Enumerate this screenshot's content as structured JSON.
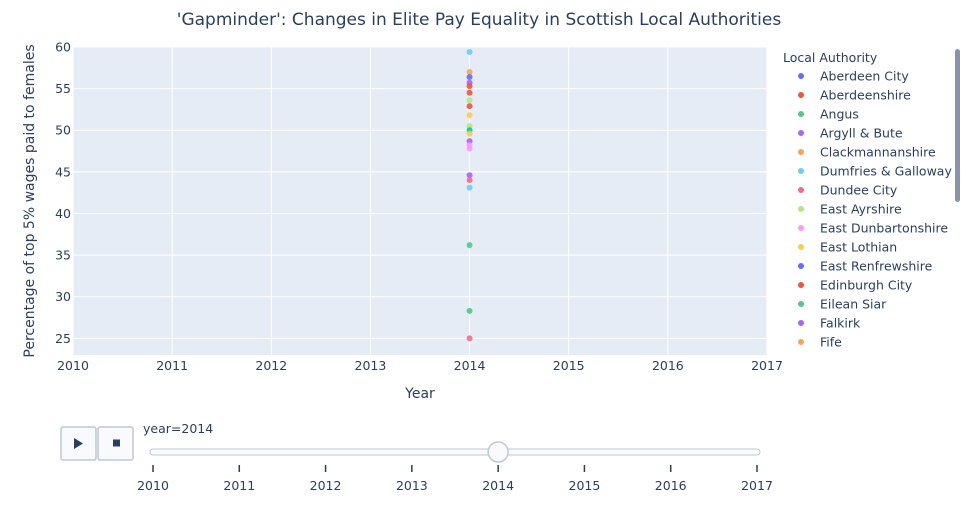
{
  "chart_data": {
    "type": "scatter",
    "title": "'Gapminder': Changes in Elite Pay Equality in Scottish Local Authorities",
    "xlabel": "Year",
    "ylabel": "Percentage of top 5% wages paid to females",
    "xlim": [
      2010,
      2017
    ],
    "ylim": [
      23,
      60
    ],
    "x_ticks": [
      2010,
      2011,
      2012,
      2013,
      2014,
      2015,
      2016,
      2017
    ],
    "y_ticks": [
      25,
      30,
      35,
      40,
      45,
      50,
      55,
      60
    ],
    "grid": true,
    "points": [
      {
        "x": 2014,
        "y": 59.4,
        "color": "#6fcbf8"
      },
      {
        "x": 2014,
        "y": 57.0,
        "color": "#f7a45b"
      },
      {
        "x": 2014,
        "y": 56.4,
        "color": "#636efa"
      },
      {
        "x": 2014,
        "y": 55.7,
        "color": "#ab63fa"
      },
      {
        "x": 2014,
        "y": 55.3,
        "color": "#ef553b"
      },
      {
        "x": 2014,
        "y": 54.5,
        "color": "#ef553b"
      },
      {
        "x": 2014,
        "y": 53.6,
        "color": "#b6e880"
      },
      {
        "x": 2014,
        "y": 52.9,
        "color": "#e2594a"
      },
      {
        "x": 2014,
        "y": 51.8,
        "color": "#fecb52"
      },
      {
        "x": 2014,
        "y": 50.5,
        "color": "#b6e880"
      },
      {
        "x": 2014,
        "y": 50.0,
        "color": "#00cc96"
      },
      {
        "x": 2014,
        "y": 49.6,
        "color": "#fecb52"
      },
      {
        "x": 2014,
        "y": 48.7,
        "color": "#ab63fa"
      },
      {
        "x": 2014,
        "y": 48.2,
        "color": "#ff97ff"
      },
      {
        "x": 2014,
        "y": 47.8,
        "color": "#ff97ff"
      },
      {
        "x": 2014,
        "y": 44.6,
        "color": "#ab63fa"
      },
      {
        "x": 2014,
        "y": 44.0,
        "color": "#ef6f85"
      },
      {
        "x": 2014,
        "y": 43.1,
        "color": "#6fcbf8"
      },
      {
        "x": 2014,
        "y": 36.2,
        "color": "#51c88a"
      },
      {
        "x": 2014,
        "y": 28.3,
        "color": "#51c88a"
      },
      {
        "x": 2014,
        "y": 25.0,
        "color": "#ef6f85"
      }
    ],
    "legend": {
      "title": "Local Authority",
      "placement": "right",
      "entries": [
        {
          "name": "Aberdeen City",
          "color": "#636efa"
        },
        {
          "name": "Aberdeenshire",
          "color": "#ef553b"
        },
        {
          "name": "Angus",
          "color": "#51c88a"
        },
        {
          "name": "Argyll & Bute",
          "color": "#ab63fa"
        },
        {
          "name": "Clackmannanshire",
          "color": "#f7a45b"
        },
        {
          "name": "Dumfries & Galloway",
          "color": "#6fcbf8"
        },
        {
          "name": "Dundee City",
          "color": "#ef6f85"
        },
        {
          "name": "East Ayrshire",
          "color": "#b6e880"
        },
        {
          "name": "East Dunbartonshire",
          "color": "#ff97ff"
        },
        {
          "name": "East Lothian",
          "color": "#fecb52"
        },
        {
          "name": "East Renfrewshire",
          "color": "#636efa"
        },
        {
          "name": "Edinburgh City",
          "color": "#ef553b"
        },
        {
          "name": "Eilean Siar",
          "color": "#51c88a"
        },
        {
          "name": "Falkirk",
          "color": "#ab63fa"
        },
        {
          "name": "Fife",
          "color": "#f7a45b"
        }
      ]
    }
  },
  "slider": {
    "label": "year=2014",
    "current": 2014,
    "steps": [
      2010,
      2011,
      2012,
      2013,
      2014,
      2015,
      2016,
      2017
    ]
  },
  "controls": {
    "play_icon": "play-icon",
    "stop_icon": "stop-icon"
  },
  "colors": {
    "plot_bg": "#e5ecf6",
    "grid": "#ffffff",
    "text": "#2a3f5f"
  }
}
